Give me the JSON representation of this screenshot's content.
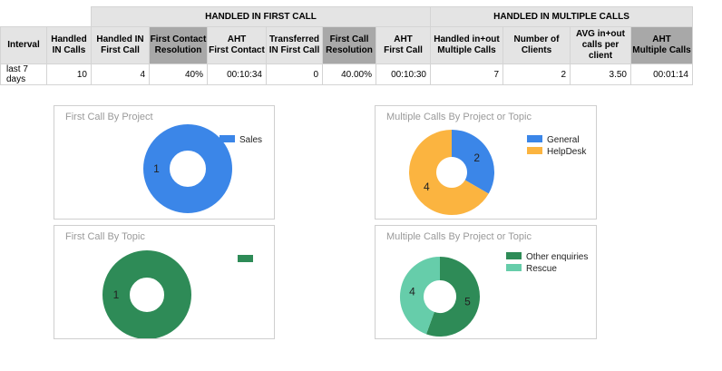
{
  "table": {
    "group_first": "HANDLED IN FIRST CALL",
    "group_multiple": "HANDLED IN MULTIPLE CALLS",
    "headers": [
      {
        "l1": "Interval",
        "l2": ""
      },
      {
        "l1": "Handled",
        "l2": "IN Calls"
      },
      {
        "l1": "Handled IN",
        "l2": "First Call"
      },
      {
        "l1": "First Contact",
        "l2": "Resolution"
      },
      {
        "l1": "AHT",
        "l2": "First Contact"
      },
      {
        "l1": "Transferred",
        "l2": "IN First Call"
      },
      {
        "l1": "First Call",
        "l2": "Resolution"
      },
      {
        "l1": "AHT",
        "l2": "First Call"
      },
      {
        "l1": "Handled in+out",
        "l2": "Multiple Calls"
      },
      {
        "l1": "Number of",
        "l2": "Clients"
      },
      {
        "l1": "AVG in+out",
        "l2": "calls per client"
      },
      {
        "l1": "AHT",
        "l2": "Multiple Calls"
      }
    ],
    "row": [
      "last 7 days",
      "10",
      "4",
      "40%",
      "00:10:34",
      "0",
      "40.00%",
      "00:10:30",
      "7",
      "2",
      "3.50",
      "00:01:14"
    ]
  },
  "charts": {
    "first_by_project": {
      "title": "First Call By Project",
      "slices": [
        {
          "name": "Sales",
          "value": 1,
          "color": "#3b86e8"
        }
      ]
    },
    "multiple_by_project": {
      "title": "Multiple Calls By Project or Topic",
      "slices": [
        {
          "name": "General",
          "value": 2,
          "color": "#3b86e8"
        },
        {
          "name": "HelpDesk",
          "value": 4,
          "color": "#fbb440"
        }
      ]
    },
    "first_by_topic": {
      "title": "First Call By Topic",
      "slices": [
        {
          "name": "",
          "value": 1,
          "color": "#2e8b57"
        }
      ]
    },
    "multiple_by_topic": {
      "title": "Multiple Calls By Project or Topic",
      "slices": [
        {
          "name": "Other enquiries",
          "value": 5,
          "color": "#2e8b57"
        },
        {
          "name": "Rescue",
          "value": 4,
          "color": "#66cdaa"
        }
      ]
    }
  },
  "chart_data": [
    {
      "type": "pie",
      "title": "First Call By Project",
      "labels": [
        "Sales"
      ],
      "values": [
        1
      ],
      "legend": "top-right"
    },
    {
      "type": "pie",
      "title": "Multiple Calls By Project or Topic",
      "labels": [
        "General",
        "HelpDesk"
      ],
      "values": [
        2,
        4
      ],
      "legend": "top-right"
    },
    {
      "type": "pie",
      "title": "First Call By Topic",
      "labels": [
        ""
      ],
      "values": [
        1
      ],
      "legend": "top-right"
    },
    {
      "type": "pie",
      "title": "Multiple Calls By Project or Topic",
      "labels": [
        "Other enquiries",
        "Rescue"
      ],
      "values": [
        5,
        4
      ],
      "legend": "top-right"
    }
  ]
}
